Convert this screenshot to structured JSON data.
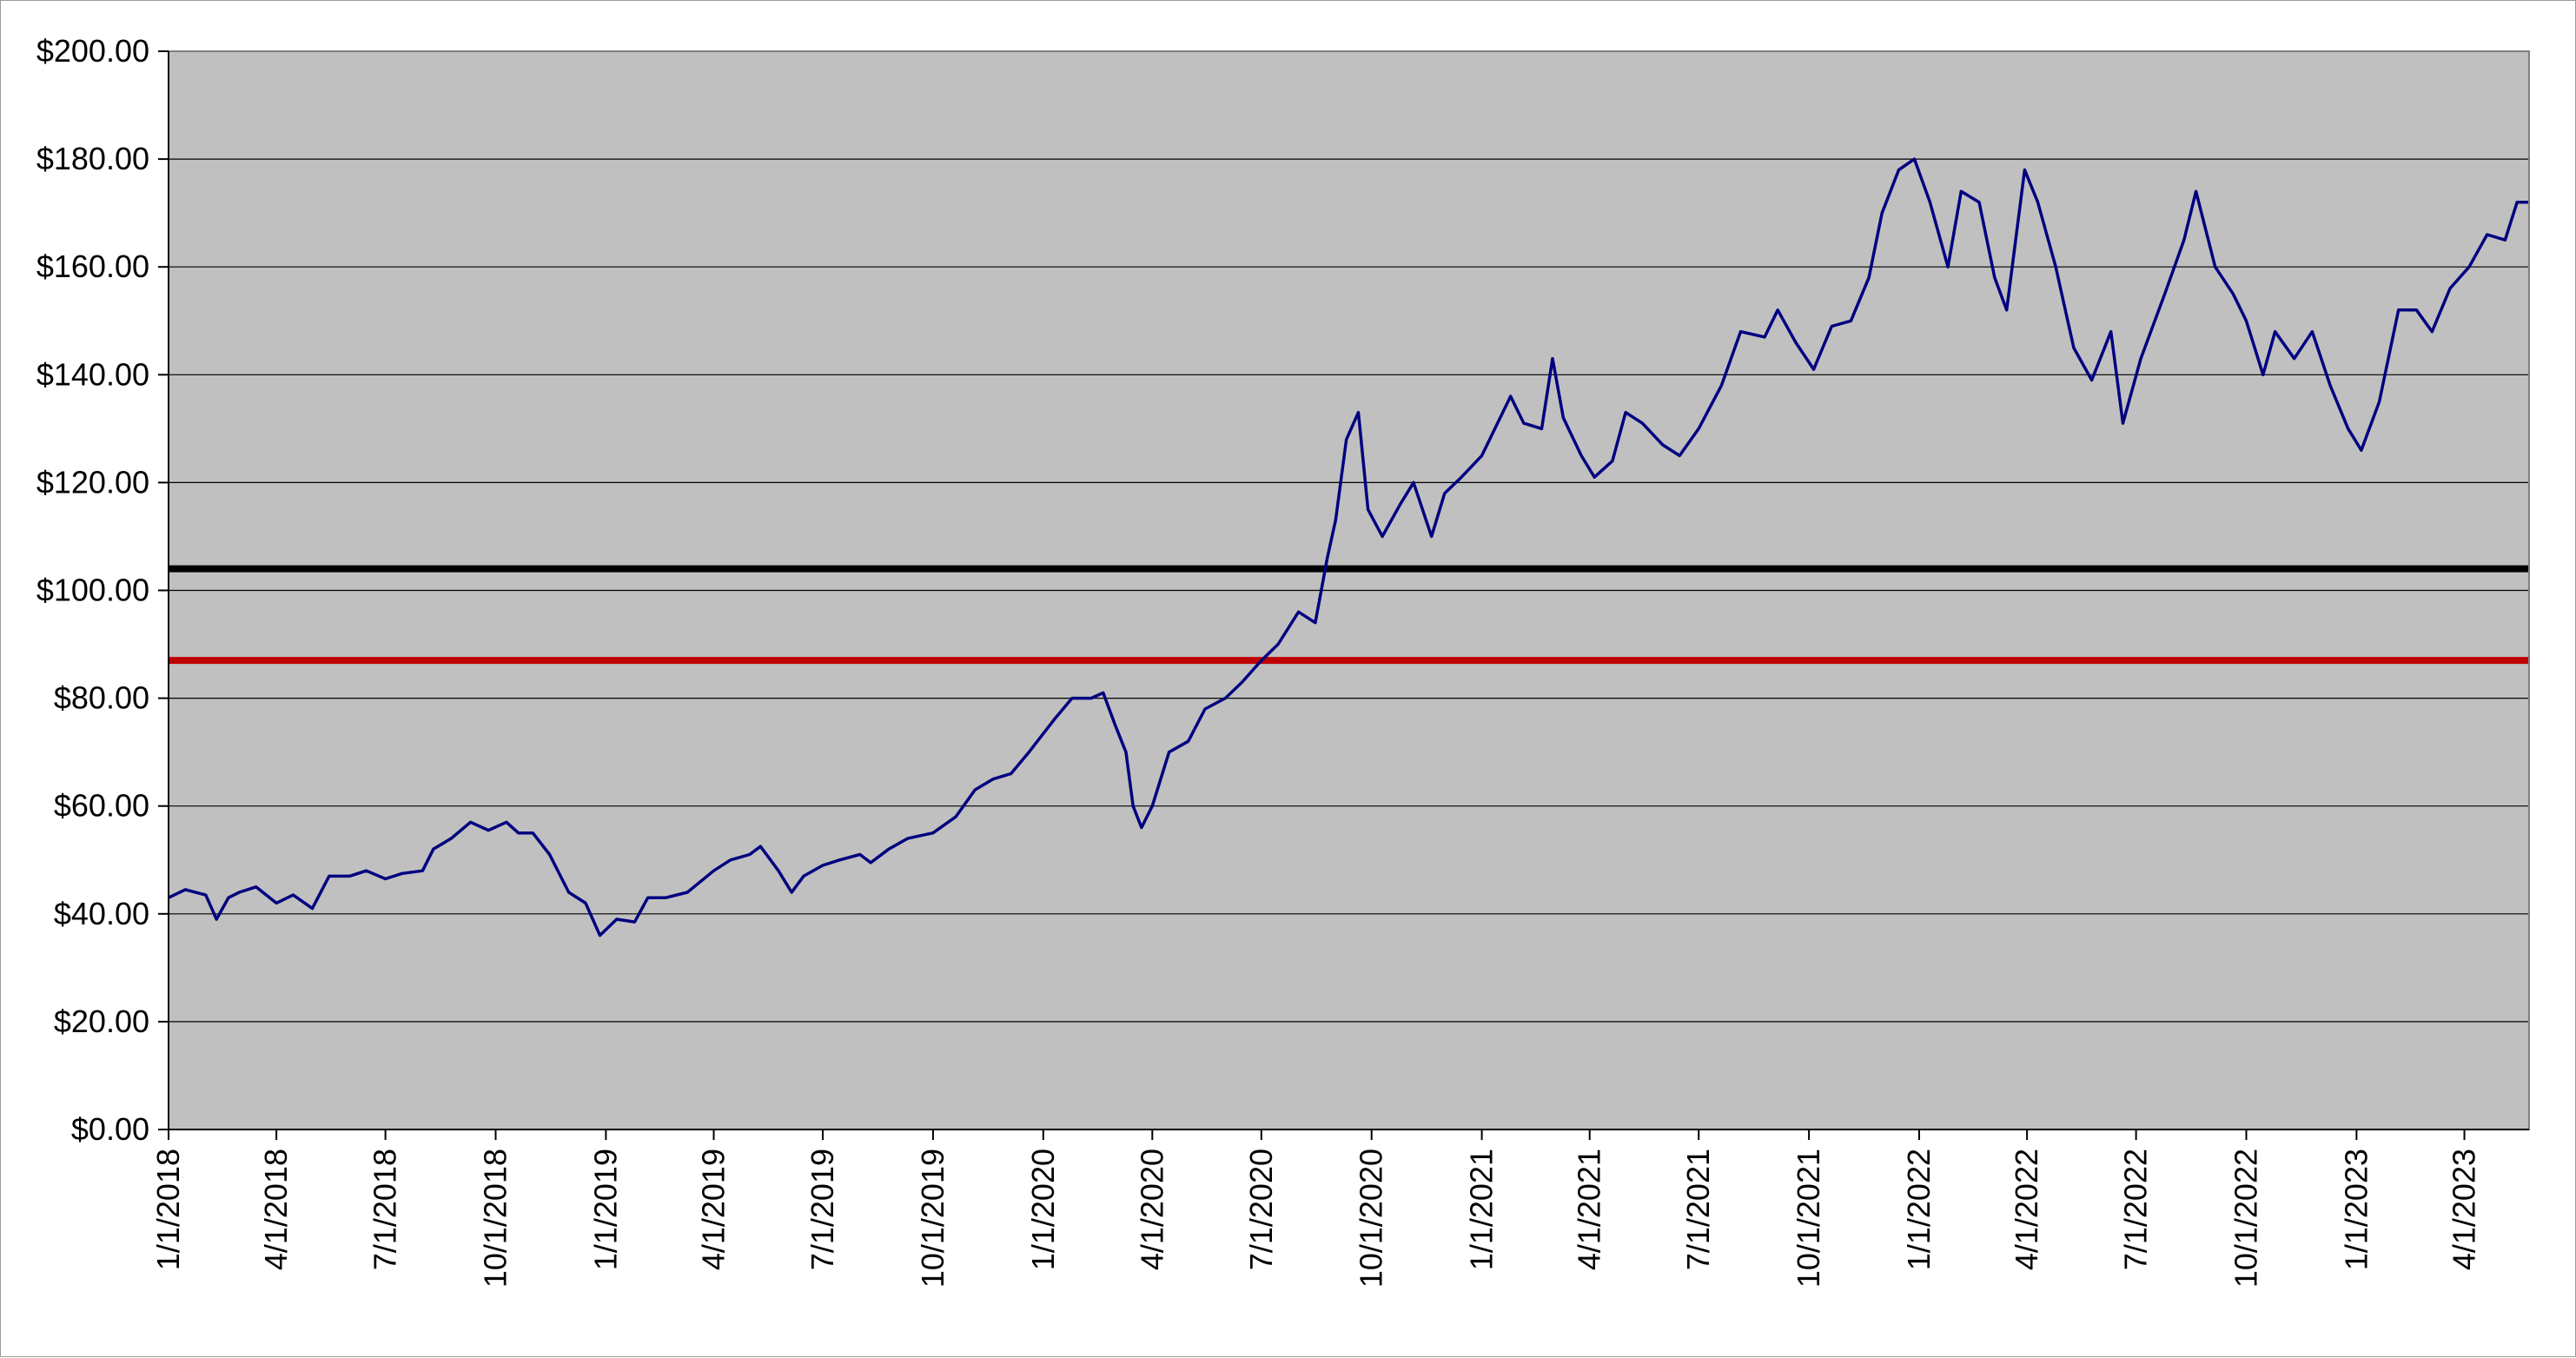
{
  "chart_data": {
    "type": "line",
    "title": "",
    "xlabel": "",
    "ylabel": "",
    "x_range": [
      "2018-01-01",
      "2023-05-25"
    ],
    "ylim": [
      0,
      200
    ],
    "grid": {
      "horizontal": true,
      "vertical": false
    },
    "legend": "none",
    "x_tick_labels": [
      "1/1/2018",
      "4/1/2018",
      "7/1/2018",
      "10/1/2018",
      "1/1/2019",
      "4/1/2019",
      "7/1/2019",
      "10/1/2019",
      "1/1/2020",
      "4/1/2020",
      "7/1/2020",
      "10/1/2020",
      "1/1/2021",
      "4/1/2021",
      "7/1/2021",
      "10/1/2021",
      "1/1/2022",
      "4/1/2022",
      "7/1/2022",
      "10/1/2022",
      "1/1/2023",
      "4/1/2023"
    ],
    "x_tick_dates": [
      "2018-01-01",
      "2018-04-01",
      "2018-07-01",
      "2018-10-01",
      "2019-01-01",
      "2019-04-01",
      "2019-07-01",
      "2019-10-01",
      "2020-01-01",
      "2020-04-01",
      "2020-07-01",
      "2020-10-01",
      "2021-01-01",
      "2021-04-01",
      "2021-07-01",
      "2021-10-01",
      "2022-01-01",
      "2022-04-01",
      "2022-07-01",
      "2022-10-01",
      "2023-01-01",
      "2023-04-01"
    ],
    "y_tick_values": [
      0,
      20,
      40,
      60,
      80,
      100,
      120,
      140,
      160,
      180,
      200
    ],
    "y_tick_labels": [
      "$0.00",
      "$20.00",
      "$40.00",
      "$60.00",
      "$80.00",
      "$100.00",
      "$120.00",
      "$140.00",
      "$160.00",
      "$180.00",
      "$200.00"
    ],
    "reference_lines": [
      {
        "value": 104,
        "color": "#000000"
      },
      {
        "value": 87,
        "color": "#c00000"
      }
    ],
    "series": [
      {
        "color": "#000080",
        "points": [
          [
            "2018-01-01",
            43
          ],
          [
            "2018-01-15",
            44.5
          ],
          [
            "2018-02-01",
            43.5
          ],
          [
            "2018-02-10",
            39
          ],
          [
            "2018-02-20",
            43
          ],
          [
            "2018-03-01",
            44
          ],
          [
            "2018-03-15",
            45
          ],
          [
            "2018-04-01",
            42
          ],
          [
            "2018-04-15",
            43.5
          ],
          [
            "2018-05-01",
            41
          ],
          [
            "2018-05-15",
            47
          ],
          [
            "2018-06-01",
            47
          ],
          [
            "2018-06-15",
            48
          ],
          [
            "2018-07-01",
            46.5
          ],
          [
            "2018-07-15",
            47.5
          ],
          [
            "2018-08-01",
            48
          ],
          [
            "2018-08-10",
            52
          ],
          [
            "2018-08-25",
            54
          ],
          [
            "2018-09-10",
            57
          ],
          [
            "2018-09-25",
            55.5
          ],
          [
            "2018-10-10",
            57
          ],
          [
            "2018-10-20",
            55
          ],
          [
            "2018-11-01",
            55
          ],
          [
            "2018-11-15",
            51
          ],
          [
            "2018-12-01",
            44
          ],
          [
            "2018-12-15",
            42
          ],
          [
            "2018-12-27",
            36
          ],
          [
            "2019-01-10",
            39
          ],
          [
            "2019-01-25",
            38.5
          ],
          [
            "2019-02-05",
            43
          ],
          [
            "2019-02-20",
            43
          ],
          [
            "2019-03-10",
            44
          ],
          [
            "2019-04-01",
            48
          ],
          [
            "2019-04-15",
            50
          ],
          [
            "2019-05-01",
            51
          ],
          [
            "2019-05-10",
            52.5
          ],
          [
            "2019-05-25",
            48
          ],
          [
            "2019-06-05",
            44
          ],
          [
            "2019-06-15",
            47
          ],
          [
            "2019-07-01",
            49
          ],
          [
            "2019-07-15",
            50
          ],
          [
            "2019-08-01",
            51
          ],
          [
            "2019-08-10",
            49.5
          ],
          [
            "2019-08-25",
            52
          ],
          [
            "2019-09-10",
            54
          ],
          [
            "2019-10-01",
            55
          ],
          [
            "2019-10-20",
            58
          ],
          [
            "2019-11-05",
            63
          ],
          [
            "2019-11-20",
            65
          ],
          [
            "2019-12-05",
            66
          ],
          [
            "2019-12-20",
            70
          ],
          [
            "2020-01-10",
            76
          ],
          [
            "2020-01-25",
            80
          ],
          [
            "2020-02-10",
            80
          ],
          [
            "2020-02-20",
            81
          ],
          [
            "2020-03-01",
            75
          ],
          [
            "2020-03-10",
            70
          ],
          [
            "2020-03-16",
            60
          ],
          [
            "2020-03-23",
            56
          ],
          [
            "2020-04-01",
            60
          ],
          [
            "2020-04-15",
            70
          ],
          [
            "2020-05-01",
            72
          ],
          [
            "2020-05-15",
            78
          ],
          [
            "2020-06-01",
            80
          ],
          [
            "2020-06-15",
            83
          ],
          [
            "2020-07-01",
            87
          ],
          [
            "2020-07-15",
            90
          ],
          [
            "2020-08-01",
            96
          ],
          [
            "2020-08-15",
            94
          ],
          [
            "2020-08-25",
            106
          ],
          [
            "2020-09-01",
            113
          ],
          [
            "2020-09-10",
            128
          ],
          [
            "2020-09-20",
            133
          ],
          [
            "2020-09-28",
            115
          ],
          [
            "2020-10-10",
            110
          ],
          [
            "2020-10-25",
            116
          ],
          [
            "2020-11-05",
            120
          ],
          [
            "2020-11-20",
            110
          ],
          [
            "2020-12-01",
            118
          ],
          [
            "2020-12-15",
            121
          ],
          [
            "2021-01-01",
            125
          ],
          [
            "2021-01-25",
            136
          ],
          [
            "2021-02-05",
            131
          ],
          [
            "2021-02-20",
            130
          ],
          [
            "2021-03-01",
            143
          ],
          [
            "2021-03-10",
            132
          ],
          [
            "2021-03-25",
            125
          ],
          [
            "2021-04-05",
            121
          ],
          [
            "2021-04-20",
            124
          ],
          [
            "2021-05-01",
            133
          ],
          [
            "2021-05-15",
            131
          ],
          [
            "2021-06-01",
            127
          ],
          [
            "2021-06-15",
            125
          ],
          [
            "2021-07-01",
            130
          ],
          [
            "2021-07-20",
            138
          ],
          [
            "2021-08-05",
            148
          ],
          [
            "2021-08-25",
            147
          ],
          [
            "2021-09-05",
            152
          ],
          [
            "2021-09-20",
            146
          ],
          [
            "2021-10-05",
            141
          ],
          [
            "2021-10-20",
            149
          ],
          [
            "2021-11-05",
            150
          ],
          [
            "2021-11-20",
            158
          ],
          [
            "2021-12-01",
            170
          ],
          [
            "2021-12-15",
            178
          ],
          [
            "2021-12-28",
            180
          ],
          [
            "2022-01-10",
            172
          ],
          [
            "2022-01-25",
            160
          ],
          [
            "2022-02-05",
            174
          ],
          [
            "2022-02-20",
            172
          ],
          [
            "2022-03-05",
            158
          ],
          [
            "2022-03-15",
            152
          ],
          [
            "2022-03-30",
            178
          ],
          [
            "2022-04-10",
            172
          ],
          [
            "2022-04-25",
            160
          ],
          [
            "2022-05-10",
            145
          ],
          [
            "2022-05-25",
            139
          ],
          [
            "2022-06-10",
            148
          ],
          [
            "2022-06-20",
            131
          ],
          [
            "2022-07-05",
            143
          ],
          [
            "2022-07-25",
            155
          ],
          [
            "2022-08-10",
            165
          ],
          [
            "2022-08-20",
            174
          ],
          [
            "2022-09-05",
            160
          ],
          [
            "2022-09-20",
            155
          ],
          [
            "2022-10-01",
            150
          ],
          [
            "2022-10-15",
            140
          ],
          [
            "2022-10-25",
            148
          ],
          [
            "2022-11-10",
            143
          ],
          [
            "2022-11-25",
            148
          ],
          [
            "2022-12-10",
            138
          ],
          [
            "2022-12-25",
            130
          ],
          [
            "2023-01-05",
            126
          ],
          [
            "2023-01-20",
            135
          ],
          [
            "2023-02-05",
            152
          ],
          [
            "2023-02-20",
            152
          ],
          [
            "2023-03-05",
            148
          ],
          [
            "2023-03-20",
            156
          ],
          [
            "2023-04-05",
            160
          ],
          [
            "2023-04-20",
            166
          ],
          [
            "2023-05-05",
            165
          ],
          [
            "2023-05-15",
            172
          ],
          [
            "2023-05-25",
            172
          ]
        ]
      }
    ]
  }
}
